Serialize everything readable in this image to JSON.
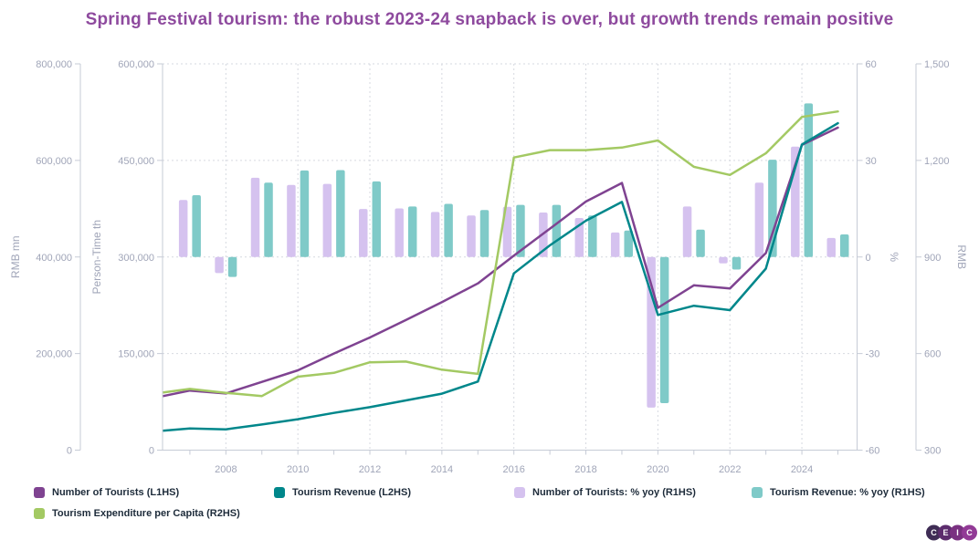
{
  "title": "Spring Festival tourism: the robust 2023-24 snapback is over, but growth trends remain positive",
  "title_color": "#8e4a9e",
  "legend": {
    "items": [
      {
        "label": "Number of Tourists (L1HS)",
        "color": "#7f4391"
      },
      {
        "label": "Tourism Revenue (L2HS)",
        "color": "#00878b"
      },
      {
        "label": "Number of Tourists: % yoy (R1HS)",
        "color": "#d5c2ef"
      },
      {
        "label": "Tourism Revenue: % yoy (R1HS)",
        "color": "#7fcac8"
      },
      {
        "label": "Tourism Expenditure per Capita (R2HS)",
        "color": "#a3c963"
      }
    ]
  },
  "logo": {
    "letters": [
      "C",
      "E",
      "I",
      "C"
    ],
    "circle_colors": [
      "#3f2d55",
      "#5c2c6d",
      "#7a3181",
      "#923a96"
    ],
    "letter_color": "#ffffff"
  },
  "chart_data": {
    "type": "combo",
    "x": [
      2006,
      2007,
      2008,
      2009,
      2010,
      2011,
      2012,
      2013,
      2014,
      2015,
      2016,
      2017,
      2018,
      2019,
      2020,
      2021,
      2022,
      2023,
      2024,
      2025
    ],
    "x_tick_labels": [
      "2008",
      "2010",
      "2012",
      "2014",
      "2016",
      "2018",
      "2020",
      "2022",
      "2024"
    ],
    "grid": "dotted",
    "axes": {
      "rmb_mn": {
        "title": "RMB mn",
        "side": "left",
        "range": [
          0,
          800000
        ],
        "ticks": [
          0,
          200000,
          400000,
          600000,
          800000
        ],
        "tick_labels": [
          "0",
          "200,000",
          "400,000",
          "600,000",
          "800,000"
        ]
      },
      "person_time_th": {
        "title": "Person-Time th",
        "side": "left",
        "range": [
          0,
          600000
        ],
        "ticks": [
          0,
          150000,
          300000,
          450000,
          600000
        ],
        "tick_labels": [
          "0",
          "150,000",
          "300,000",
          "450,000",
          "600,000"
        ]
      },
      "pct": {
        "title": "%",
        "side": "right",
        "range": [
          -60,
          60
        ],
        "ticks": [
          -60,
          -30,
          0,
          30,
          60
        ],
        "tick_labels": [
          "-60",
          "-30",
          "0",
          "30",
          "60"
        ]
      },
      "rmb": {
        "title": "RMB",
        "side": "right",
        "range": [
          300,
          1500
        ],
        "ticks": [
          300,
          600,
          900,
          1200,
          1500
        ],
        "tick_labels": [
          "300",
          "600",
          "900",
          "1,200",
          "1,500"
        ]
      }
    },
    "series": [
      {
        "name": "Number of Tourists (L1HS)",
        "type": "line",
        "axis": "person_time_th",
        "color": "#7f4391",
        "values": [
          81000,
          92500,
          88000,
          106000,
          124000,
          150000,
          175000,
          202000,
          230000,
          259000,
          302000,
          344000,
          386000,
          415000,
          221000,
          256000,
          251000,
          306000,
          474000,
          501000
        ]
      },
      {
        "name": "Tourism Revenue (L2HS)",
        "type": "line",
        "axis": "rmb_mn",
        "color": "#00878b",
        "values": [
          38500,
          45000,
          43000,
          53000,
          64000,
          77000,
          89000,
          103000,
          117000,
          142000,
          366000,
          424000,
          475000,
          514000,
          280000,
          299000,
          290000,
          376000,
          633000,
          677000
        ]
      },
      {
        "name": "Number of Tourists: % yoy (R1HS)",
        "type": "bar",
        "axis": "pct",
        "color": "#d5c2ef",
        "values": [
          null,
          17.7,
          -5.0,
          24.6,
          22.4,
          22.7,
          14.9,
          15.1,
          14.0,
          12.9,
          15.6,
          13.8,
          12.1,
          7.6,
          -46.8,
          15.7,
          -2.0,
          23.1,
          34.3,
          5.9
        ]
      },
      {
        "name": "Tourism Revenue: % yoy (R1HS)",
        "type": "bar",
        "axis": "pct",
        "color": "#7fcac8",
        "values": [
          null,
          19.2,
          -6.2,
          23.1,
          26.9,
          27.0,
          23.5,
          15.7,
          16.5,
          14.6,
          16.2,
          16.2,
          12.9,
          8.2,
          -45.4,
          8.5,
          -3.9,
          30.2,
          47.7,
          7.0
        ]
      },
      {
        "name": "Tourism Expenditure per Capita (R2HS)",
        "type": "line",
        "axis": "rmb",
        "color": "#a3c963",
        "values": [
          475,
          490,
          478,
          468,
          528,
          540,
          573,
          575,
          550,
          537,
          1209,
          1232,
          1232,
          1240,
          1262,
          1180,
          1155,
          1222,
          1335,
          1352
        ]
      }
    ]
  }
}
